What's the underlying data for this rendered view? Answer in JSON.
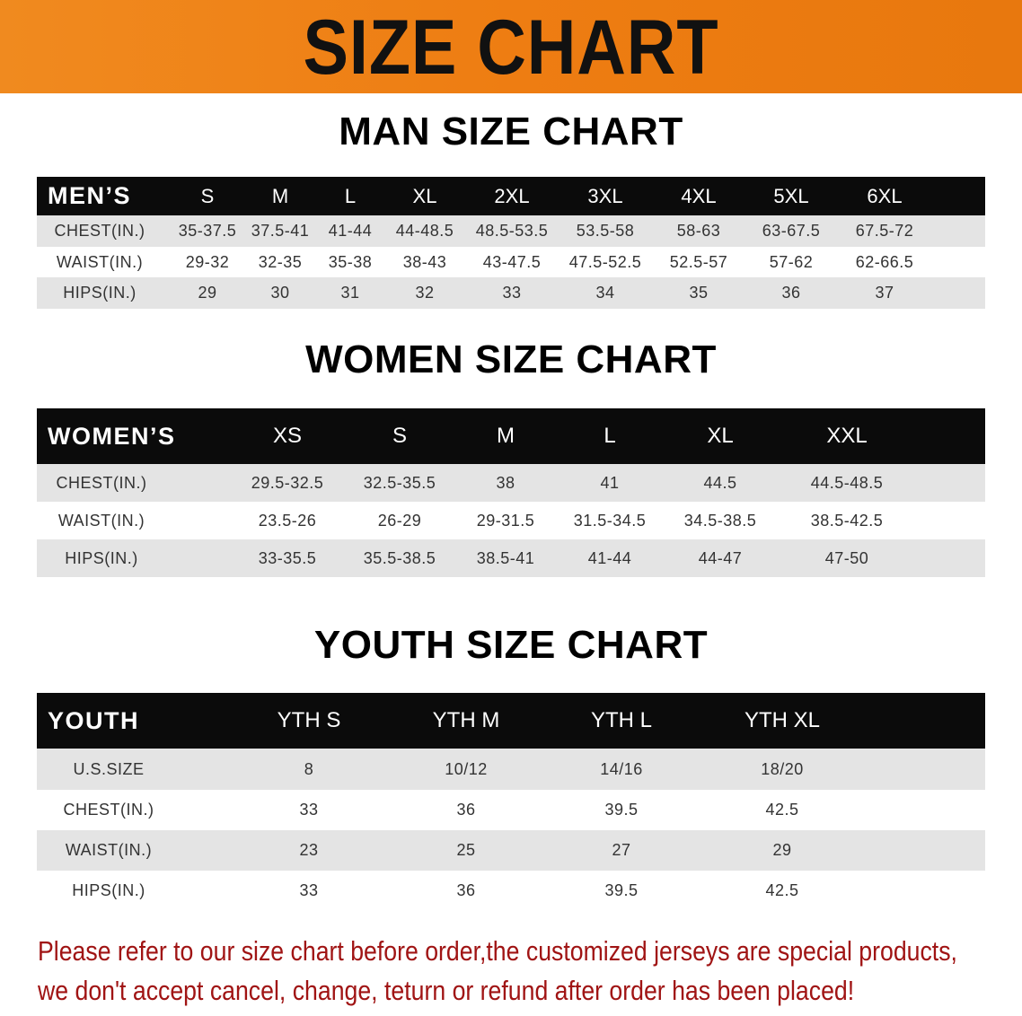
{
  "banner_title": "SIZE CHART",
  "colors": {
    "banner": "#ee7d12",
    "header_row": "#0b0b0b",
    "alt_row": "#e4e4e4",
    "notice": "#a01414"
  },
  "men": {
    "title": "MAN SIZE CHART",
    "header_label": "MEN’S",
    "sizes": [
      "S",
      "M",
      "L",
      "XL",
      "2XL",
      "3XL",
      "4XL",
      "5XL",
      "6XL"
    ],
    "rows": [
      {
        "label": "CHEST(IN.)",
        "values": [
          "35-37.5",
          "37.5-41",
          "41-44",
          "44-48.5",
          "48.5-53.5",
          "53.5-58",
          "58-63",
          "63-67.5",
          "67.5-72"
        ]
      },
      {
        "label": "WAIST(IN.)",
        "values": [
          "29-32",
          "32-35",
          "35-38",
          "38-43",
          "43-47.5",
          "47.5-52.5",
          "52.5-57",
          "57-62",
          "62-66.5"
        ]
      },
      {
        "label": "HIPS(IN.)",
        "values": [
          "29",
          "30",
          "31",
          "32",
          "33",
          "34",
          "35",
          "36",
          "37"
        ]
      }
    ]
  },
  "women": {
    "title": "WOMEN SIZE CHART",
    "header_label": "WOMEN’S",
    "sizes": [
      "XS",
      "S",
      "M",
      "L",
      "XL",
      "XXL"
    ],
    "rows": [
      {
        "label": "CHEST(IN.)",
        "values": [
          "29.5-32.5",
          "32.5-35.5",
          "38",
          "41",
          "44.5",
          "44.5-48.5"
        ]
      },
      {
        "label": "WAIST(IN.)",
        "values": [
          "23.5-26",
          "26-29",
          "29-31.5",
          "31.5-34.5",
          "34.5-38.5",
          "38.5-42.5"
        ]
      },
      {
        "label": "HIPS(IN.)",
        "values": [
          "33-35.5",
          "35.5-38.5",
          "38.5-41",
          "41-44",
          "44-47",
          "47-50"
        ]
      }
    ]
  },
  "youth": {
    "title": "YOUTH SIZE CHART",
    "header_label": "YOUTH",
    "sizes": [
      "YTH S",
      "YTH M",
      "YTH L",
      "YTH XL"
    ],
    "rows": [
      {
        "label": "U.S.SIZE",
        "values": [
          "8",
          "10/12",
          "14/16",
          "18/20"
        ]
      },
      {
        "label": "CHEST(IN.)",
        "values": [
          "33",
          "36",
          "39.5",
          "42.5"
        ]
      },
      {
        "label": "WAIST(IN.)",
        "values": [
          "23",
          "25",
          "27",
          "29"
        ]
      },
      {
        "label": "HIPS(IN.)",
        "values": [
          "33",
          "36",
          "39.5",
          "42.5"
        ]
      }
    ]
  },
  "notice": {
    "line1": "Please refer to our size chart before order,the customized jerseys are special products,",
    "line2": "we don't accept cancel, change, teturn or refund after order has been placed!"
  }
}
